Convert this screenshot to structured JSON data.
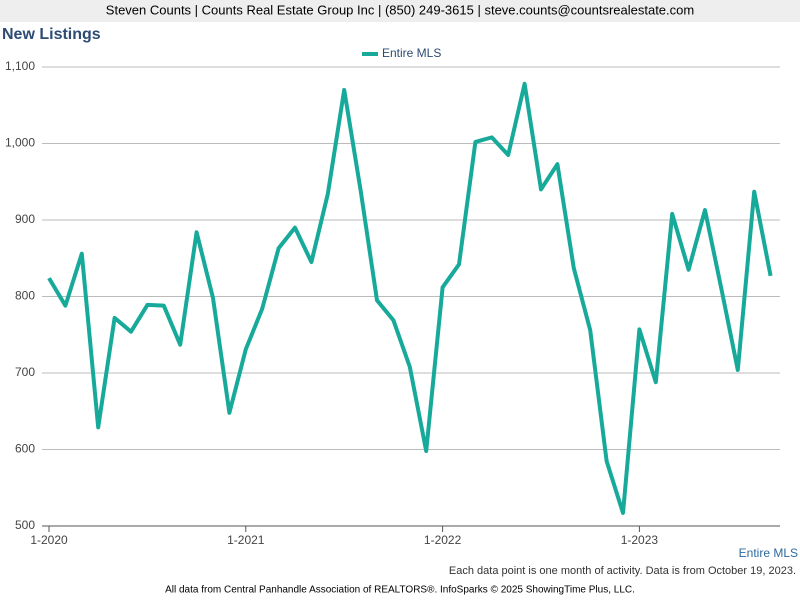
{
  "header": "Steven Counts | Counts Real Estate Group Inc | (850) 249-3615 | steve.counts@countsrealestate.com",
  "chart_data": {
    "type": "line",
    "title": "New Listings",
    "categories": [
      "1-2020",
      null,
      null,
      null,
      null,
      null,
      null,
      null,
      null,
      null,
      null,
      null,
      "1-2021",
      null,
      null,
      null,
      null,
      null,
      null,
      null,
      null,
      null,
      null,
      null,
      "1-2022",
      null,
      null,
      null,
      null,
      null,
      null,
      null,
      null,
      null,
      null,
      null,
      "1-2023",
      null,
      null,
      null,
      null,
      null,
      null,
      null,
      null
    ],
    "series": [
      {
        "name": "Entire MLS",
        "color": "#17aa9b",
        "values": [
          824,
          788,
          856,
          629,
          772,
          754,
          789,
          788,
          737,
          884,
          798,
          648,
          731,
          784,
          863,
          890,
          845,
          934,
          1070,
          939,
          795,
          769,
          708,
          598,
          812,
          842,
          1002,
          1008,
          985,
          1078,
          940,
          973,
          837,
          756,
          585,
          517,
          757,
          688,
          908,
          835,
          913,
          810,
          704,
          937,
          827
        ]
      }
    ],
    "ylim": [
      500,
      1100
    ],
    "yticks": [
      500,
      600,
      700,
      800,
      900,
      {
        "value": 1000,
        "label": "1,000"
      },
      {
        "value": 1100,
        "label": "1,100"
      }
    ],
    "grid": true,
    "legend": "top",
    "note": "Each data point is one month of activity. Data is from October 19, 2023."
  },
  "footer": "All data from Central Panhandle Association of REALTORS®. InfoSparks © 2025 ShowingTime Plus, LLC."
}
